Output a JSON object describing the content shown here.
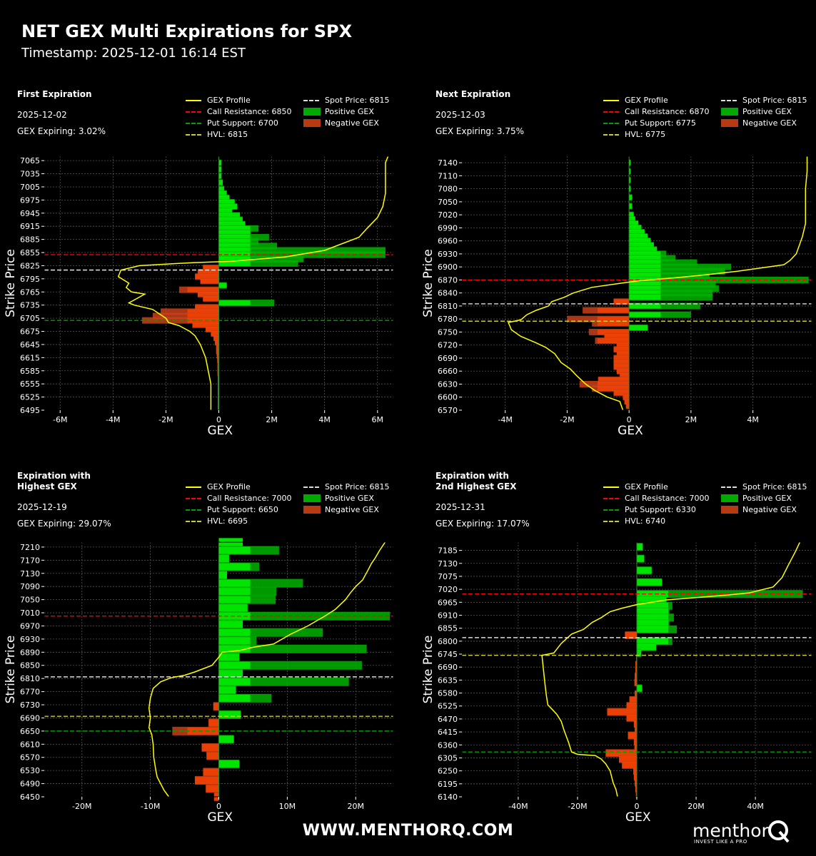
{
  "title": "NET GEX Multi Expirations for SPX",
  "timestamp": "Timestamp: 2025-12-01 16:14 EST",
  "footer_url": "WWW.MENTHORQ.COM",
  "brand": {
    "name": "menthor",
    "tagline": "INVEST LIKE A PRO",
    "logo_letter": "Q"
  },
  "colors": {
    "bg": "#000000",
    "profile": "#ffff00",
    "call_resistance": "#ff0000",
    "put_support": "#00a000",
    "hvl": "#cccc33",
    "spot": "#dddddd",
    "positive": "#00ff00",
    "negative": "#ff4400"
  },
  "chart_data": [
    {
      "type": "bar",
      "orientation": "horizontal",
      "panel_title": "First Expiration",
      "date": "2025-12-02",
      "gex_expiring": "GEX Expiring: 3.02%",
      "xlabel": "GEX",
      "ylabel": "Strike Price",
      "xlim": [
        -6.6,
        6.6
      ],
      "ylim": [
        6495,
        7075
      ],
      "xticks": [
        -6,
        -4,
        -2,
        0,
        2,
        4,
        6
      ],
      "xtick_labels": [
        "-6M",
        "-4M",
        "-2M",
        "0",
        "2M",
        "4M",
        "6M"
      ],
      "yticks": [
        6495,
        6525,
        6555,
        6585,
        6615,
        6645,
        6675,
        6705,
        6735,
        6765,
        6795,
        6825,
        6855,
        6885,
        6915,
        6945,
        6975,
        7005,
        7035,
        7065
      ],
      "legend": {
        "profile": "GEX Profile",
        "call": "Call Resistance: 6850",
        "put": "Put Support: 6700",
        "hvl": "HVL: 6815",
        "spot": "Spot Price: 6815",
        "pos": "Positive GEX",
        "neg": "Negative GEX"
      },
      "levels": {
        "call": 6850,
        "put": 6700,
        "hvl": 6815,
        "spot": 6815
      },
      "bar_height": 9,
      "strikes": [
        7060,
        7045,
        7030,
        7015,
        7000,
        6990,
        6980,
        6970,
        6960,
        6950,
        6940,
        6930,
        6920,
        6910,
        6900,
        6890,
        6880,
        6870,
        6860,
        6850,
        6840,
        6830,
        6820,
        6810,
        6800,
        6790,
        6780,
        6770,
        6760,
        6750,
        6740,
        6730,
        6720,
        6710,
        6700,
        6690,
        6680,
        6670,
        6660,
        6650,
        6640,
        6630,
        6620,
        6610,
        6600,
        6590,
        6580,
        6570,
        6560,
        6550,
        6540,
        6530,
        6520,
        6510,
        6500
      ],
      "values": [
        0.1,
        0.1,
        0.1,
        0.15,
        0.2,
        0.3,
        0.4,
        0.6,
        0.7,
        0.5,
        0.8,
        0.9,
        1.0,
        1.5,
        1.2,
        1.9,
        1.5,
        2.2,
        6.3,
        6.3,
        3.2,
        3.0,
        -0.6,
        -0.8,
        -0.9,
        -0.7,
        0.3,
        -1.5,
        -0.8,
        -0.6,
        2.1,
        -0.9,
        -2.2,
        -2.5,
        -2.9,
        -1.0,
        -0.5,
        -0.3,
        -0.2,
        -0.15,
        -0.1,
        -0.1,
        -0.08,
        -0.06,
        -0.05,
        -0.05,
        -0.05,
        -0.04,
        -0.04,
        -0.04,
        -0.04,
        -0.04,
        -0.04,
        -0.04,
        -0.04
      ],
      "profile": [
        [
          -0.3,
          6495
        ],
        [
          -0.3,
          6525
        ],
        [
          -0.3,
          6555
        ],
        [
          -0.4,
          6585
        ],
        [
          -0.5,
          6615
        ],
        [
          -0.7,
          6645
        ],
        [
          -0.9,
          6665
        ],
        [
          -1.1,
          6675
        ],
        [
          -1.5,
          6688
        ],
        [
          -1.9,
          6695
        ],
        [
          -2.0,
          6705
        ],
        [
          -2.5,
          6725
        ],
        [
          -3.2,
          6735
        ],
        [
          -3.4,
          6740
        ],
        [
          -3.1,
          6750
        ],
        [
          -2.8,
          6760
        ],
        [
          -3.3,
          6765
        ],
        [
          -3.5,
          6775
        ],
        [
          -3.4,
          6785
        ],
        [
          -3.8,
          6800
        ],
        [
          -3.7,
          6815
        ],
        [
          -3.0,
          6825
        ],
        [
          -1.0,
          6832
        ],
        [
          0.5,
          6835
        ],
        [
          2.5,
          6845
        ],
        [
          4.0,
          6860
        ],
        [
          5.3,
          6890
        ],
        [
          5.6,
          6910
        ],
        [
          6.0,
          6935
        ],
        [
          6.2,
          6960
        ],
        [
          6.3,
          6990
        ],
        [
          6.3,
          7030
        ],
        [
          6.3,
          7060
        ],
        [
          6.4,
          7075
        ]
      ]
    },
    {
      "type": "bar",
      "orientation": "horizontal",
      "panel_title": "Next Expiration",
      "date": "2025-12-03",
      "gex_expiring": "GEX Expiring: 3.75%",
      "xlabel": "GEX",
      "ylabel": "Strike Price",
      "xlim": [
        -5.4,
        5.9
      ],
      "ylim": [
        6570,
        7155
      ],
      "xticks": [
        -4,
        -2,
        0,
        2,
        4
      ],
      "xtick_labels": [
        "-4M",
        "-2M",
        "0",
        "2M",
        "4M"
      ],
      "yticks": [
        6570,
        6600,
        6630,
        6660,
        6690,
        6720,
        6750,
        6780,
        6810,
        6840,
        6870,
        6900,
        6930,
        6960,
        6990,
        7020,
        7050,
        7080,
        7110,
        7140
      ],
      "legend": {
        "profile": "GEX Profile",
        "call": "Call Resistance: 6870",
        "put": "Put Support: 6775",
        "hvl": "HVL: 6775",
        "spot": "Spot Price: 6815",
        "pos": "Positive GEX",
        "neg": "Negative GEX"
      },
      "levels": {
        "call": 6870,
        "put": 6775,
        "hvl": 6775,
        "spot": 6815
      },
      "bar_height": 9,
      "strikes": [
        7140,
        7120,
        7100,
        7080,
        7060,
        7040,
        7020,
        7010,
        7000,
        6990,
        6980,
        6970,
        6960,
        6950,
        6940,
        6930,
        6920,
        6910,
        6900,
        6890,
        6880,
        6870,
        6860,
        6850,
        6840,
        6830,
        6820,
        6810,
        6800,
        6790,
        6780,
        6770,
        6760,
        6750,
        6740,
        6730,
        6720,
        6710,
        6700,
        6690,
        6680,
        6670,
        6660,
        6650,
        6640,
        6630,
        6620,
        6610,
        6600,
        6590,
        6580
      ],
      "values": [
        0.05,
        0.05,
        0.05,
        0.05,
        0.1,
        0.1,
        0.15,
        0.2,
        0.3,
        0.4,
        0.5,
        0.6,
        0.7,
        0.8,
        0.9,
        1.2,
        1.5,
        2.2,
        3.3,
        3.1,
        2.6,
        5.8,
        2.8,
        2.9,
        2.7,
        2.7,
        -0.5,
        2.3,
        -1.5,
        2.0,
        -2.0,
        -1.2,
        0.6,
        -1.3,
        -0.8,
        -1.1,
        -0.4,
        -0.5,
        -0.4,
        -0.5,
        -0.5,
        -0.5,
        -0.4,
        -0.3,
        -1.0,
        -1.6,
        -1.2,
        -0.5,
        -0.2,
        -0.15,
        -0.1
      ],
      "profile": [
        [
          -0.2,
          6570
        ],
        [
          -0.3,
          6590
        ],
        [
          -0.7,
          6600
        ],
        [
          -1.1,
          6615
        ],
        [
          -1.4,
          6630
        ],
        [
          -1.7,
          6650
        ],
        [
          -1.9,
          6665
        ],
        [
          -2.2,
          6680
        ],
        [
          -2.4,
          6700
        ],
        [
          -2.7,
          6715
        ],
        [
          -3.0,
          6725
        ],
        [
          -3.5,
          6740
        ],
        [
          -3.8,
          6755
        ],
        [
          -3.9,
          6772
        ],
        [
          -3.5,
          6778
        ],
        [
          -3.3,
          6790
        ],
        [
          -3.0,
          6800
        ],
        [
          -2.6,
          6810
        ],
        [
          -2.5,
          6820
        ],
        [
          -2.1,
          6830
        ],
        [
          -1.8,
          6840
        ],
        [
          -1.2,
          6853
        ],
        [
          -0.3,
          6862
        ],
        [
          0.3,
          6868
        ],
        [
          1.5,
          6875
        ],
        [
          2.5,
          6882
        ],
        [
          3.5,
          6890
        ],
        [
          4.2,
          6897
        ],
        [
          5.0,
          6905
        ],
        [
          5.2,
          6915
        ],
        [
          5.4,
          6930
        ],
        [
          5.5,
          6950
        ],
        [
          5.6,
          6970
        ],
        [
          5.7,
          7000
        ],
        [
          5.7,
          7040
        ],
        [
          5.7,
          7080
        ],
        [
          5.75,
          7120
        ],
        [
          5.75,
          7155
        ]
      ]
    },
    {
      "type": "bar",
      "orientation": "horizontal",
      "panel_title": "Expiration with\nHighest GEX",
      "date": "2025-12-19",
      "gex_expiring": "GEX Expiring: 29.07%",
      "xlabel": "GEX",
      "ylabel": "Strike Price",
      "xlim": [
        -25.5,
        25.5
      ],
      "ylim": [
        6450,
        7225
      ],
      "xticks": [
        -20,
        -10,
        0,
        10,
        20
      ],
      "xtick_labels": [
        "-20M",
        "-10M",
        "0",
        "10M",
        "20M"
      ],
      "yticks": [
        6450,
        6490,
        6530,
        6570,
        6610,
        6650,
        6690,
        6730,
        6770,
        6810,
        6850,
        6890,
        6930,
        6970,
        7010,
        7050,
        7090,
        7130,
        7170,
        7210
      ],
      "legend": {
        "profile": "GEX Profile",
        "call": "Call Resistance: 7000",
        "put": "Put Support: 6650",
        "hvl": "HVL: 6695",
        "spot": "Spot Price: 6815",
        "pos": "Positive GEX",
        "neg": "Negative GEX"
      },
      "levels": {
        "call": 7000,
        "put": 6650,
        "hvl": 6695,
        "spot": 6815
      },
      "bar_height": 12,
      "strikes": [
        7225,
        7200,
        7175,
        7150,
        7125,
        7100,
        7075,
        7050,
        7025,
        7000,
        6975,
        6950,
        6925,
        6900,
        6875,
        6850,
        6825,
        6800,
        6775,
        6750,
        6725,
        6700,
        6675,
        6650,
        6625,
        6600,
        6575,
        6550,
        6525,
        6500,
        6475,
        6450
      ],
      "values": [
        3.5,
        8.8,
        1.5,
        5.9,
        1.2,
        12.3,
        8.4,
        8.3,
        4.2,
        25.0,
        3.5,
        15.2,
        5.5,
        21.6,
        3.0,
        20.9,
        3.5,
        19.0,
        2.5,
        7.7,
        -0.8,
        3.2,
        -1.5,
        -6.8,
        2.2,
        -2.5,
        -1.8,
        3.0,
        -2.3,
        -3.5,
        -1.9,
        -0.7
      ],
      "profile": [
        [
          -7.3,
          6450
        ],
        [
          -8.0,
          6470
        ],
        [
          -8.5,
          6490
        ],
        [
          -9.0,
          6510
        ],
        [
          -9.2,
          6530
        ],
        [
          -9.5,
          6570
        ],
        [
          -9.6,
          6610
        ],
        [
          -9.8,
          6640
        ],
        [
          -10.2,
          6660
        ],
        [
          -10.0,
          6690
        ],
        [
          -10.2,
          6720
        ],
        [
          -10.0,
          6750
        ],
        [
          -9.6,
          6780
        ],
        [
          -8.5,
          6800
        ],
        [
          -7.0,
          6812
        ],
        [
          -5.0,
          6820
        ],
        [
          -3.5,
          6830
        ],
        [
          -1.0,
          6850
        ],
        [
          0.0,
          6875
        ],
        [
          0.5,
          6890
        ],
        [
          3.0,
          6895
        ],
        [
          5.0,
          6905
        ],
        [
          8.0,
          6915
        ],
        [
          10.5,
          6945
        ],
        [
          13.0,
          6970
        ],
        [
          15.5,
          7000
        ],
        [
          17.0,
          7020
        ],
        [
          18.5,
          7050
        ],
        [
          19.2,
          7070
        ],
        [
          20.0,
          7090
        ],
        [
          21.0,
          7110
        ],
        [
          21.8,
          7140
        ],
        [
          22.3,
          7160
        ],
        [
          22.8,
          7175
        ],
        [
          23.5,
          7200
        ],
        [
          24.3,
          7225
        ]
      ]
    },
    {
      "type": "bar",
      "orientation": "horizontal",
      "panel_title": "Expiration with\n2nd Highest GEX",
      "date": "2025-12-31",
      "gex_expiring": "GEX Expiring: 17.07%",
      "xlabel": "GEX",
      "ylabel": "Strike Price",
      "xlim": [
        -59,
        59
      ],
      "ylim": [
        6140,
        7220
      ],
      "xticks": [
        -40,
        -20,
        0,
        20,
        40
      ],
      "xtick_labels": [
        "-40M",
        "-20M",
        "0",
        "20M",
        "40M"
      ],
      "yticks": [
        6140,
        6195,
        6250,
        6305,
        6360,
        6415,
        6470,
        6525,
        6580,
        6635,
        6690,
        6745,
        6800,
        6855,
        6910,
        6965,
        7020,
        7075,
        7130,
        7185
      ],
      "legend": {
        "profile": "GEX Profile",
        "call": "Call Resistance: 7000",
        "put": "Put Support: 6330",
        "hvl": "HVL: 6740",
        "spot": "Spot Price: 6815",
        "pos": "Positive GEX",
        "neg": "Negative GEX"
      },
      "levels": {
        "call": 7000,
        "put": 6330,
        "hvl": 6740,
        "spot": 6815
      },
      "bar_height": 11,
      "strikes": [
        7200,
        7150,
        7100,
        7050,
        7000,
        6975,
        6950,
        6925,
        6900,
        6875,
        6850,
        6825,
        6800,
        6775,
        6750,
        6725,
        6700,
        6675,
        6650,
        6625,
        6600,
        6575,
        6550,
        6525,
        6500,
        6475,
        6450,
        6425,
        6400,
        6375,
        6350,
        6325,
        6300,
        6275,
        6250,
        6225,
        6200,
        6175,
        6150
      ],
      "values": [
        2.0,
        2.5,
        5.0,
        8.5,
        56.0,
        10.0,
        12.0,
        11.0,
        12.5,
        11.0,
        13.5,
        -4.0,
        12.0,
        6.5,
        1.5,
        -0.2,
        -0.5,
        -0.5,
        -0.7,
        -0.8,
        1.8,
        -0.7,
        -2.5,
        -3.5,
        -10.0,
        -3.5,
        -1.0,
        -0.7,
        -3.0,
        -1.0,
        -0.8,
        -10.5,
        -6.0,
        -5.0,
        -1.2,
        -1.0,
        -0.7,
        -0.5,
        -0.3
      ],
      "profile": [
        [
          -6.5,
          6140
        ],
        [
          -7.0,
          6170
        ],
        [
          -8.0,
          6200
        ],
        [
          -9.0,
          6250
        ],
        [
          -10.5,
          6280
        ],
        [
          -12.0,
          6300
        ],
        [
          -14.0,
          6315
        ],
        [
          -20.0,
          6320
        ],
        [
          -22.0,
          6330
        ],
        [
          -23.0,
          6370
        ],
        [
          -24.5,
          6420
        ],
        [
          -25.5,
          6460
        ],
        [
          -27.0,
          6490
        ],
        [
          -28.5,
          6510
        ],
        [
          -30.0,
          6530
        ],
        [
          -30.5,
          6570
        ],
        [
          -31.0,
          6620
        ],
        [
          -31.5,
          6680
        ],
        [
          -32.0,
          6740
        ],
        [
          -28.0,
          6750
        ],
        [
          -25.5,
          6790
        ],
        [
          -22.0,
          6830
        ],
        [
          -18.0,
          6850
        ],
        [
          -15.0,
          6880
        ],
        [
          -12.0,
          6900
        ],
        [
          -9.0,
          6925
        ],
        [
          -5.0,
          6940
        ],
        [
          0.0,
          6955
        ],
        [
          10.0,
          6975
        ],
        [
          20.0,
          6985
        ],
        [
          30.0,
          6995
        ],
        [
          38.0,
          7005
        ],
        [
          46.0,
          7030
        ],
        [
          49.0,
          7070
        ],
        [
          51.0,
          7120
        ],
        [
          53.5,
          7180
        ],
        [
          55.0,
          7220
        ]
      ]
    }
  ]
}
